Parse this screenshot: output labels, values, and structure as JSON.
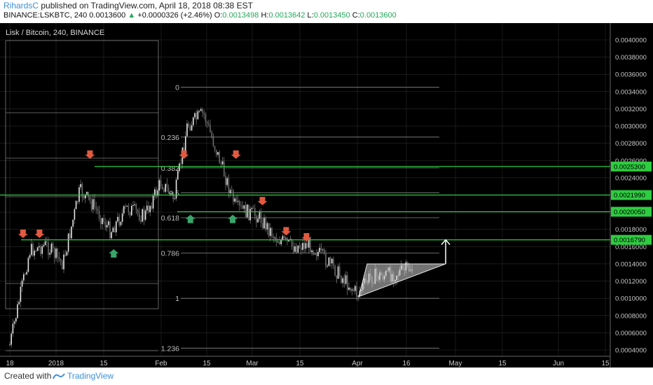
{
  "header": {
    "author": "RihardsC",
    "published_text": "published on TradingView.com, April 18, 2018 08:38 EST",
    "symbol": "BINANCE:LSKBTC, 240",
    "price": "0.0013600",
    "up_arrow": "▲",
    "change": "+0.0000326 (+2.46%)",
    "o_label": "O:",
    "o_value": "0.0013498",
    "h_label": "H:",
    "h_value": "0.0013642",
    "l_label": "L:",
    "l_value": "0.0013450",
    "c_label": "C:",
    "c_value": "0.0013600"
  },
  "chart_title": "Lisk / Bitcoin, 240, BINANCE",
  "footer": {
    "created": "Created with",
    "brand": "TradingView"
  },
  "colors": {
    "background": "#000000",
    "grid": "#2a2a2a",
    "green_line": "#2ecc40",
    "price_label_bg": "#2ecc40",
    "red_arrow": "#e05a3f",
    "green_arrow": "#3aa56b",
    "fib_line": "#8a8a8a",
    "candle": "#c8c8c8"
  },
  "y_axis_ticks": [
    "0.0004000",
    "0.0006000",
    "0.0008000",
    "0.0010000",
    "0.0012000",
    "0.0014000",
    "0.0016000",
    "0.0018000",
    "0.0020000",
    "0.0022000",
    "0.0024000",
    "0.0026000",
    "0.0028000",
    "0.0030000",
    "0.0032000",
    "0.0034000",
    "0.0036000",
    "0.0038000",
    "0.0040000"
  ],
  "x_axis_ticks": [
    "18",
    "2018",
    "15",
    "Feb",
    "15",
    "Mar",
    "15",
    "Apr",
    "16",
    "May",
    "15",
    "Jun",
    "15"
  ],
  "price_labels": [
    "0.0025300",
    "0.0021990",
    "0.0020050",
    "0.0016790"
  ],
  "fib_labels": [
    "0",
    "0.236",
    "0.382",
    "0.5",
    "0.618",
    "0.786",
    "1",
    "1.236"
  ],
  "chart_data": {
    "type": "candlestick",
    "title": "Lisk / Bitcoin, 240, BINANCE",
    "ylim": [
      0.00032,
      0.0042
    ],
    "y_axis_side": "right",
    "x_ticks": [
      "18",
      "2018",
      "15",
      "Feb",
      "15",
      "Mar",
      "15",
      "Apr",
      "16",
      "May",
      "15",
      "Jun",
      "15"
    ],
    "approx_close_path": [
      {
        "date": "Dec 18",
        "close": 0.00046
      },
      {
        "date": "Dec 24",
        "close": 0.00155
      },
      {
        "date": "Dec 29",
        "close": 0.00162
      },
      {
        "date": "Jan 3",
        "close": 0.0014
      },
      {
        "date": "Jan 8",
        "close": 0.00225
      },
      {
        "date": "Jan 12",
        "close": 0.00208
      },
      {
        "date": "Jan 17",
        "close": 0.00178
      },
      {
        "date": "Jan 22",
        "close": 0.00205
      },
      {
        "date": "Jan 27",
        "close": 0.00195
      },
      {
        "date": "Feb 1",
        "close": 0.00235
      },
      {
        "date": "Feb 5",
        "close": 0.00215
      },
      {
        "date": "Feb 9",
        "close": 0.003
      },
      {
        "date": "Feb 14",
        "close": 0.00315
      },
      {
        "date": "Feb 19",
        "close": 0.0026
      },
      {
        "date": "Feb 24",
        "close": 0.00205
      },
      {
        "date": "Mar 3",
        "close": 0.00195
      },
      {
        "date": "Mar 8",
        "close": 0.0017
      },
      {
        "date": "Mar 13",
        "close": 0.0016
      },
      {
        "date": "Mar 18",
        "close": 0.00163
      },
      {
        "date": "Mar 25",
        "close": 0.00135
      },
      {
        "date": "Apr 1",
        "close": 0.00105
      },
      {
        "date": "Apr 5",
        "close": 0.00125
      },
      {
        "date": "Apr 12",
        "close": 0.00128
      },
      {
        "date": "Apr 18",
        "close": 0.00136
      }
    ],
    "horizontal_levels": [
      0.00253,
      0.002199,
      0.002005,
      0.001679
    ],
    "fibonacci": {
      "level_0": 0.00345,
      "level_1": 0.001,
      "levels": [
        0,
        0.236,
        0.382,
        0.5,
        0.618,
        0.786,
        1,
        1.236
      ]
    },
    "annotations": [
      {
        "type": "red_arrow_down",
        "date": "Dec 22",
        "price": 0.0017
      },
      {
        "type": "red_arrow_down",
        "date": "Dec 27",
        "price": 0.0017
      },
      {
        "type": "red_arrow_down",
        "date": "Jan 11",
        "price": 0.00262
      },
      {
        "type": "green_arrow_up",
        "date": "Jan 18",
        "price": 0.00157
      },
      {
        "type": "red_arrow_down",
        "date": "Feb 8",
        "price": 0.00262
      },
      {
        "type": "green_arrow_up",
        "date": "Feb 10",
        "price": 0.00197
      },
      {
        "type": "green_arrow_up",
        "date": "Feb 23",
        "price": 0.00197
      },
      {
        "type": "red_arrow_down",
        "date": "Feb 24",
        "price": 0.00262
      },
      {
        "type": "red_arrow_down",
        "date": "Mar 4",
        "price": 0.00208
      },
      {
        "type": "red_arrow_down",
        "date": "Mar 11",
        "price": 0.00173
      },
      {
        "type": "red_arrow_down",
        "date": "Mar 17",
        "price": 0.00166
      },
      {
        "type": "triangle_pattern",
        "from": "Apr 1",
        "to": "Apr 28"
      },
      {
        "type": "white_arrow_up",
        "date": "Apr 28",
        "from": 0.0014,
        "to": 0.00168
      }
    ]
  }
}
